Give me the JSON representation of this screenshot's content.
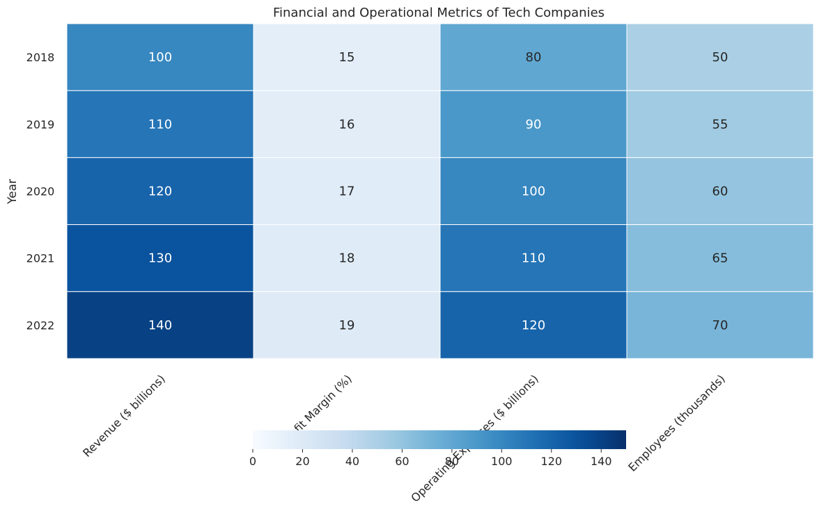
{
  "chart_data": {
    "type": "heatmap",
    "title": "Financial and Operational Metrics of Tech Companies",
    "ylabel": "Year",
    "xlabel": "",
    "rows": [
      "2018",
      "2019",
      "2020",
      "2021",
      "2022"
    ],
    "columns": [
      "Revenue ($ billions)",
      "Profit Margin (%)",
      "Operating Expenses ($ billions)",
      "Employees (thousands)"
    ],
    "values": [
      [
        100,
        15,
        80,
        50
      ],
      [
        110,
        16,
        90,
        55
      ],
      [
        120,
        17,
        100,
        60
      ],
      [
        130,
        18,
        110,
        65
      ],
      [
        140,
        19,
        120,
        70
      ]
    ],
    "annotations": true,
    "colormap": "Blues",
    "color_range": [
      0,
      150
    ],
    "colorbar": {
      "orientation": "horizontal",
      "placement": "bottom",
      "ticks": [
        0,
        20,
        40,
        60,
        80,
        100,
        120,
        140
      ]
    },
    "colors": {
      "low": "#f7fbff",
      "high": "#08306b",
      "text_dark": "#262626",
      "text_light": "#ffffff"
    }
  }
}
